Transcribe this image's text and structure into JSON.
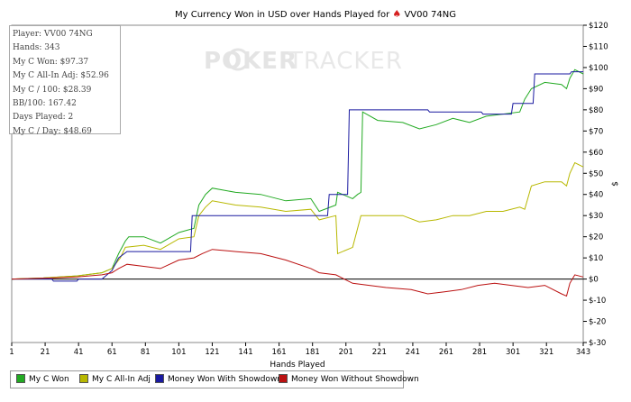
{
  "title": "My Currency Won in USD over Hands Played for",
  "player_tag": "VV00 74NG",
  "suit_icon": "spade-icon",
  "watermark": {
    "left": "POKER",
    "right": "TRACKER"
  },
  "stats": {
    "lines": [
      "Player: VV00 74NG",
      "Hands: 343",
      "My C Won: $97.37",
      "My C All-In Adj: $52.96",
      "My C / 100: $28.39",
      "BB/100: 167.42",
      "Days Played: 2",
      "My C / Day: $48.69"
    ]
  },
  "chart_data": {
    "type": "line",
    "title": "My Currency Won in USD over Hands Played for VV00 74NG",
    "xlabel": "Hands Played",
    "ylabel": "$",
    "xlim": [
      1,
      343
    ],
    "ylim": [
      -30,
      120
    ],
    "x_ticks": [
      1,
      21,
      41,
      61,
      81,
      101,
      121,
      141,
      161,
      181,
      201,
      221,
      241,
      261,
      281,
      301,
      321,
      343
    ],
    "y_ticks": [
      -30,
      -20,
      -10,
      0,
      10,
      20,
      30,
      40,
      50,
      60,
      70,
      80,
      90,
      100,
      110,
      120
    ],
    "y_tick_labels": [
      "$-30",
      "$-20",
      "$-10",
      "$0",
      "$10",
      "$20",
      "$30",
      "$40",
      "$50",
      "$60",
      "$70",
      "$80",
      "$90",
      "$100",
      "$110",
      "$120"
    ],
    "grid": false,
    "legend_position": "bottom",
    "series": [
      {
        "name": "My C Won",
        "color": "#22aa22",
        "points": [
          [
            1,
            0
          ],
          [
            20,
            0.5
          ],
          [
            40,
            1.5
          ],
          [
            55,
            3
          ],
          [
            61,
            5
          ],
          [
            65,
            12
          ],
          [
            69,
            18
          ],
          [
            71,
            20
          ],
          [
            80,
            20
          ],
          [
            90,
            17
          ],
          [
            101,
            22
          ],
          [
            110,
            24
          ],
          [
            113,
            35
          ],
          [
            117,
            40
          ],
          [
            121,
            43
          ],
          [
            135,
            41
          ],
          [
            150,
            40
          ],
          [
            165,
            37
          ],
          [
            180,
            38
          ],
          [
            185,
            32
          ],
          [
            195,
            35
          ],
          [
            196,
            41
          ],
          [
            205,
            38
          ],
          [
            208,
            40
          ],
          [
            210,
            41
          ],
          [
            211,
            79
          ],
          [
            220,
            75
          ],
          [
            235,
            74
          ],
          [
            245,
            71
          ],
          [
            255,
            73
          ],
          [
            265,
            76
          ],
          [
            275,
            74
          ],
          [
            285,
            77
          ],
          [
            295,
            78
          ],
          [
            305,
            79
          ],
          [
            308,
            85
          ],
          [
            312,
            90
          ],
          [
            320,
            93
          ],
          [
            330,
            92
          ],
          [
            333,
            90
          ],
          [
            335,
            95
          ],
          [
            338,
            99
          ],
          [
            343,
            97
          ]
        ]
      },
      {
        "name": "My C All-In Adj",
        "color": "#b8b800",
        "points": [
          [
            1,
            0
          ],
          [
            20,
            0.5
          ],
          [
            40,
            1.5
          ],
          [
            55,
            3
          ],
          [
            61,
            5
          ],
          [
            66,
            10
          ],
          [
            69,
            15
          ],
          [
            80,
            16
          ],
          [
            90,
            14
          ],
          [
            101,
            19
          ],
          [
            110,
            20
          ],
          [
            113,
            30
          ],
          [
            117,
            34
          ],
          [
            121,
            37
          ],
          [
            135,
            35
          ],
          [
            150,
            34
          ],
          [
            165,
            32
          ],
          [
            180,
            33
          ],
          [
            185,
            28
          ],
          [
            195,
            30
          ],
          [
            196,
            12
          ],
          [
            205,
            15
          ],
          [
            210,
            30
          ],
          [
            220,
            30
          ],
          [
            235,
            30
          ],
          [
            245,
            27
          ],
          [
            255,
            28
          ],
          [
            265,
            30
          ],
          [
            275,
            30
          ],
          [
            285,
            32
          ],
          [
            295,
            32
          ],
          [
            305,
            34
          ],
          [
            308,
            33
          ],
          [
            312,
            44
          ],
          [
            320,
            46
          ],
          [
            330,
            46
          ],
          [
            333,
            44
          ],
          [
            335,
            50
          ],
          [
            338,
            55
          ],
          [
            343,
            53
          ]
        ]
      },
      {
        "name": "Money Won With Showdown",
        "color": "#1a1aa0",
        "points": [
          [
            1,
            0
          ],
          [
            25,
            0
          ],
          [
            26,
            -1
          ],
          [
            40,
            -1
          ],
          [
            41,
            0
          ],
          [
            55,
            0
          ],
          [
            58,
            2
          ],
          [
            61,
            4
          ],
          [
            65,
            10
          ],
          [
            70,
            13
          ],
          [
            108,
            13
          ],
          [
            109,
            30
          ],
          [
            190,
            30
          ],
          [
            191,
            40
          ],
          [
            202,
            40
          ],
          [
            203,
            80
          ],
          [
            250,
            80
          ],
          [
            251,
            79
          ],
          [
            282,
            79
          ],
          [
            283,
            78
          ],
          [
            300,
            78
          ],
          [
            301,
            83
          ],
          [
            313,
            83
          ],
          [
            314,
            97
          ],
          [
            335,
            97
          ],
          [
            336,
            98
          ],
          [
            343,
            98
          ]
        ]
      },
      {
        "name": "Money Won Without Showdown",
        "color": "#bb1111",
        "points": [
          [
            1,
            0
          ],
          [
            25,
            0.5
          ],
          [
            40,
            1
          ],
          [
            55,
            2
          ],
          [
            61,
            3
          ],
          [
            65,
            5
          ],
          [
            70,
            7
          ],
          [
            80,
            6
          ],
          [
            90,
            5
          ],
          [
            101,
            9
          ],
          [
            110,
            10
          ],
          [
            115,
            12
          ],
          [
            121,
            14
          ],
          [
            135,
            13
          ],
          [
            150,
            12
          ],
          [
            165,
            9
          ],
          [
            180,
            5
          ],
          [
            185,
            3
          ],
          [
            195,
            2
          ],
          [
            205,
            -2
          ],
          [
            215,
            -3
          ],
          [
            225,
            -4
          ],
          [
            240,
            -5
          ],
          [
            250,
            -7
          ],
          [
            260,
            -6
          ],
          [
            270,
            -5
          ],
          [
            280,
            -3
          ],
          [
            290,
            -2
          ],
          [
            300,
            -3
          ],
          [
            310,
            -4
          ],
          [
            320,
            -3
          ],
          [
            330,
            -7
          ],
          [
            333,
            -8
          ],
          [
            335,
            -2
          ],
          [
            338,
            2
          ],
          [
            343,
            1
          ]
        ]
      }
    ]
  }
}
